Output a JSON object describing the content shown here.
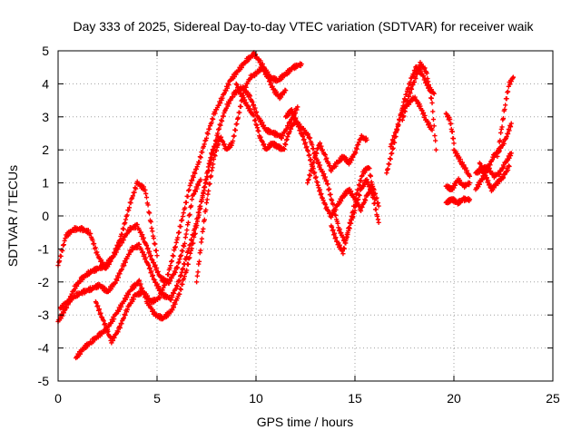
{
  "chart_data": {
    "type": "scatter",
    "title": "Day 333 of 2025, Sidereal Day-to-day VTEC variation (SDTVAR) for receiver waik",
    "xlabel": "GPS time / hours",
    "ylabel": "SDTVAR / TECUs",
    "xlim": [
      0,
      25
    ],
    "ylim": [
      -5,
      5
    ],
    "xticks": [
      0,
      5,
      10,
      15,
      20,
      25
    ],
    "yticks": [
      -5,
      -4,
      -3,
      -2,
      -1,
      0,
      1,
      2,
      3,
      4,
      5
    ],
    "grid": true,
    "marker": "+",
    "color": "#ff0000",
    "series": [
      {
        "name": "satellite track 1",
        "x": [
          0.0,
          0.4,
          0.8,
          1.2,
          1.6,
          2.0,
          2.4,
          2.8,
          3.2,
          3.6,
          4.0,
          4.4,
          4.8,
          5.0
        ],
        "y": [
          -1.5,
          -0.6,
          -0.4,
          -0.4,
          -0.5,
          -1.2,
          -1.6,
          -1.2,
          -0.6,
          0.3,
          1.0,
          0.8,
          -0.6,
          -1.2
        ]
      },
      {
        "name": "satellite track 2",
        "x": [
          0.0,
          0.4,
          0.8,
          1.2,
          1.6,
          2.0,
          2.4,
          2.8,
          3.2,
          3.6,
          4.0,
          4.4,
          4.8,
          5.2,
          5.6,
          6.0,
          6.4,
          6.8,
          7.2
        ],
        "y": [
          -3.2,
          -2.8,
          -2.2,
          -1.9,
          -1.7,
          -1.6,
          -1.5,
          -1.2,
          -0.8,
          -0.4,
          -0.3,
          -0.8,
          -1.4,
          -1.9,
          -2.0,
          -1.6,
          -0.8,
          0.6,
          1.1
        ]
      },
      {
        "name": "satellite track 3",
        "x": [
          0.1,
          0.5,
          0.9,
          1.3,
          1.7,
          2.1,
          2.5,
          2.9,
          3.3,
          3.7,
          4.1,
          4.5,
          4.9,
          5.3,
          5.7,
          6.1,
          6.5,
          6.9,
          7.3,
          7.7,
          8.1
        ],
        "y": [
          -2.8,
          -2.6,
          -2.4,
          -2.3,
          -2.2,
          -2.1,
          -2.3,
          -2.0,
          -1.5,
          -1.0,
          -0.9,
          -1.4,
          -2.0,
          -2.4,
          -2.5,
          -2.0,
          -1.2,
          -0.4,
          0.6,
          1.8,
          2.4
        ]
      },
      {
        "name": "satellite track 4",
        "x": [
          0.9,
          1.3,
          1.7,
          2.1,
          2.5,
          2.9,
          3.3,
          3.7,
          4.1,
          4.5,
          4.9,
          5.3,
          5.7,
          6.1,
          6.5,
          6.9,
          7.3,
          7.7,
          8.1,
          8.5,
          8.9,
          9.3,
          9.7,
          10.1,
          10.5,
          10.9,
          11.3,
          11.7,
          12.1
        ],
        "y": [
          -4.3,
          -4.0,
          -3.8,
          -3.6,
          -3.4,
          -3.0,
          -2.6,
          -2.2,
          -2.0,
          -2.6,
          -3.0,
          -3.1,
          -2.9,
          -2.4,
          -1.6,
          -0.6,
          0.6,
          1.6,
          2.6,
          3.3,
          3.7,
          3.9,
          3.6,
          3.0,
          2.6,
          2.5,
          2.4,
          2.8,
          3.3
        ]
      },
      {
        "name": "satellite track 5",
        "x": [
          1.9,
          2.3,
          2.7,
          3.1,
          3.5,
          3.9,
          4.3,
          4.7,
          5.1,
          5.5,
          5.9,
          6.3,
          6.7,
          7.1,
          7.5,
          7.9,
          8.3,
          8.7,
          9.1,
          9.5,
          9.9,
          10.3,
          10.7,
          11.1,
          11.5,
          11.9,
          12.3
        ],
        "y": [
          -2.6,
          -3.2,
          -3.8,
          -3.4,
          -2.8,
          -2.4,
          -2.3,
          -2.6,
          -2.5,
          -1.9,
          -1.0,
          0.0,
          1.0,
          1.6,
          2.4,
          3.1,
          3.6,
          4.1,
          4.4,
          4.7,
          4.9,
          4.6,
          4.2,
          4.1,
          4.3,
          4.5,
          4.6
        ]
      },
      {
        "name": "satellite track 6",
        "x": [
          7.0,
          7.3,
          7.6,
          7.9,
          8.2,
          8.5,
          8.8,
          9.1,
          9.4,
          9.7,
          10.0,
          10.3,
          10.6,
          10.9,
          11.2,
          11.5
        ],
        "y": [
          -2.0,
          -0.5,
          0.8,
          1.8,
          2.4,
          2.0,
          2.2,
          3.0,
          3.8,
          4.2,
          4.3,
          4.5,
          4.2,
          3.8,
          3.6,
          3.8
        ]
      },
      {
        "name": "satellite track 7",
        "x": [
          9.0,
          9.3,
          9.6,
          9.9,
          10.2,
          10.5,
          10.8,
          11.1,
          11.4,
          11.7,
          12.0,
          12.3,
          12.6,
          12.9,
          13.2,
          13.5,
          13.8,
          14.1,
          14.4,
          14.7,
          15.0,
          15.3,
          15.6,
          15.9,
          16.2
        ],
        "y": [
          4.0,
          3.6,
          3.3,
          3.0,
          2.4,
          2.0,
          2.2,
          2.1,
          2.0,
          2.6,
          2.9,
          2.5,
          2.0,
          1.4,
          0.8,
          0.3,
          0.0,
          0.3,
          0.6,
          0.8,
          0.5,
          0.2,
          0.6,
          0.9,
          0.3
        ]
      },
      {
        "name": "satellite track 8",
        "x": [
          11.5,
          11.8,
          12.1,
          12.4,
          12.7,
          13.0,
          13.3,
          13.6,
          13.9,
          14.2,
          14.5,
          14.8,
          15.1,
          15.4,
          15.7,
          16.0
        ],
        "y": [
          3.0,
          3.2,
          2.8,
          2.6,
          2.4,
          1.8,
          1.4,
          1.0,
          0.3,
          -0.4,
          -0.8,
          -0.1,
          0.7,
          1.3,
          1.5,
          0.5
        ]
      },
      {
        "name": "satellite track 9",
        "x": [
          12.6,
          12.9,
          13.2,
          13.5,
          13.8,
          14.1,
          14.4,
          14.7,
          15.0,
          15.3,
          15.6
        ],
        "y": [
          1.0,
          1.6,
          2.2,
          1.8,
          1.4,
          1.6,
          1.8,
          1.6,
          1.9,
          2.4,
          2.3
        ]
      },
      {
        "name": "satellite track 10",
        "x": [
          13.8,
          14.1,
          14.4,
          14.7,
          15.0,
          15.3,
          15.6,
          15.9,
          16.2
        ],
        "y": [
          -0.3,
          -0.8,
          -1.1,
          -0.4,
          0.2,
          0.8,
          1.1,
          0.6,
          -0.2
        ]
      },
      {
        "name": "satellite track 11",
        "x": [
          16.6,
          16.9,
          17.2,
          17.5,
          17.8,
          18.1,
          18.4,
          18.7,
          19.0
        ],
        "y": [
          1.3,
          2.0,
          2.8,
          3.5,
          4.1,
          4.5,
          4.3,
          3.9,
          3.7
        ]
      },
      {
        "name": "satellite track 12",
        "x": [
          16.8,
          17.1,
          17.4,
          17.7,
          18.0,
          18.3,
          18.6,
          18.9
        ],
        "y": [
          2.1,
          2.6,
          3.2,
          3.4,
          3.6,
          3.3,
          2.9,
          2.6
        ]
      },
      {
        "name": "satellite track 13",
        "x": [
          17.4,
          17.7,
          18.0,
          18.3,
          18.6,
          18.9,
          19.1
        ],
        "y": [
          2.9,
          3.6,
          4.1,
          4.6,
          4.4,
          3.4,
          2.0
        ]
      },
      {
        "name": "satellite track 14",
        "x": [
          19.6,
          19.8,
          19.9,
          20.0
        ],
        "y": [
          3.1,
          2.9,
          2.6,
          2.2
        ]
      },
      {
        "name": "satellite track 15",
        "x": [
          19.6,
          19.9,
          20.2,
          20.5,
          20.8
        ],
        "y": [
          0.4,
          0.5,
          0.4,
          0.5,
          0.5
        ]
      },
      {
        "name": "satellite track 16",
        "x": [
          19.6,
          19.9,
          20.2,
          20.5,
          20.8
        ],
        "y": [
          0.9,
          0.8,
          1.1,
          0.9,
          1.0
        ]
      },
      {
        "name": "satellite track 17",
        "x": [
          20.0,
          20.2,
          20.4,
          20.6,
          20.8
        ],
        "y": [
          2.0,
          1.8,
          1.6,
          1.4,
          1.2
        ]
      },
      {
        "name": "satellite track 18",
        "x": [
          21.1,
          21.4,
          21.7,
          22.0,
          22.3,
          22.6,
          22.9
        ],
        "y": [
          0.8,
          1.1,
          1.4,
          1.8,
          2.0,
          2.3,
          2.8
        ]
      },
      {
        "name": "satellite track 19",
        "x": [
          21.1,
          21.4,
          21.7,
          22.0,
          22.3,
          22.6,
          22.9
        ],
        "y": [
          1.3,
          1.4,
          1.5,
          1.2,
          1.3,
          1.6,
          1.9
        ]
      },
      {
        "name": "satellite track 20",
        "x": [
          21.3,
          21.6,
          21.9,
          22.2,
          22.5,
          22.8
        ],
        "y": [
          1.6,
          1.2,
          0.8,
          1.0,
          1.2,
          1.5
        ]
      },
      {
        "name": "satellite track 21",
        "x": [
          22.2,
          22.4,
          22.6,
          22.8,
          23.0
        ],
        "y": [
          1.8,
          2.6,
          3.4,
          4.0,
          4.2
        ]
      }
    ]
  }
}
